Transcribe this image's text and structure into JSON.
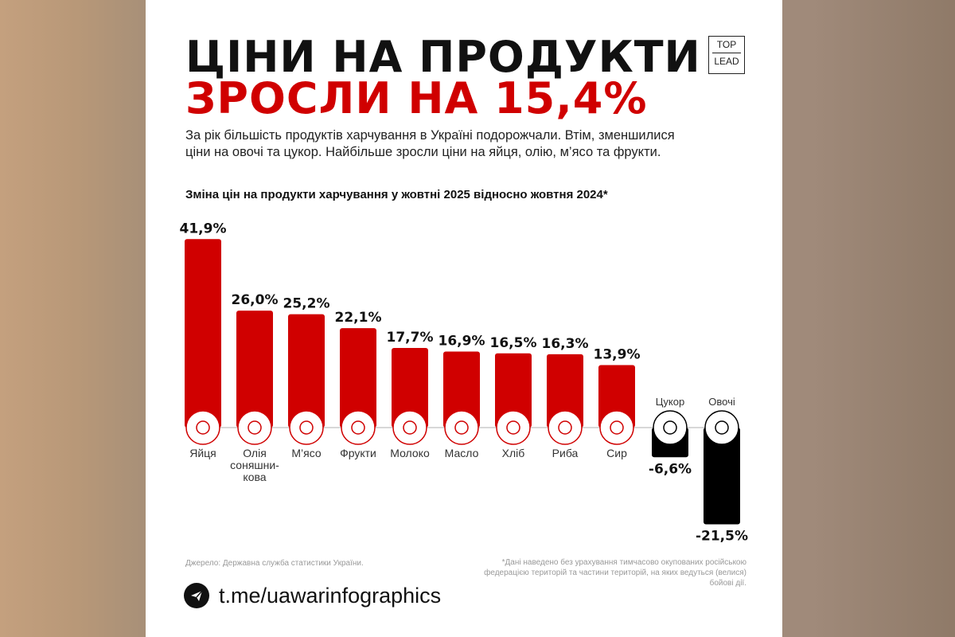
{
  "title_line1": "ЦІНИ НА ПРОДУКТИ",
  "title_line2": "ЗРОСЛИ НА 15,4%",
  "logo": {
    "line1": "TOP",
    "line2": "LEAD"
  },
  "subtitle": "За рік більшість продуктів харчування в Україні подорожчали. Втім, зменшилися ціни на овочі та цукор. Найбільше зросли ціни на яйця, олію, м’ясо та фрукти.",
  "colors": {
    "positive": "#d00000",
    "negative": "#000000"
  },
  "chart_data": {
    "type": "bar",
    "title": "Зміна цін на продукти харчування у жовтні 2025 відносно жовтня 2024*",
    "categories": [
      "Яйця",
      "Олія соняшни-кова",
      "М’ясо",
      "Фрукти",
      "Молоко",
      "Масло",
      "Хліб",
      "Риба",
      "Сир",
      "Цукор",
      "Овочі"
    ],
    "icons": [
      "egg-icon",
      "oil-bottle-icon",
      "chicken-leg-icon",
      "apple-icon",
      "milk-carton-icon",
      "butter-icon",
      "bread-icon",
      "fish-icon",
      "cheese-icon",
      "sugar-cubes-icon",
      "vegetables-icon"
    ],
    "values": [
      41.9,
      26.0,
      25.2,
      22.1,
      17.7,
      16.9,
      16.5,
      16.3,
      13.9,
      -6.6,
      -21.5
    ],
    "labels": [
      "41,9%",
      "26,0%",
      "25,2%",
      "22,1%",
      "17,7%",
      "16,9%",
      "16,5%",
      "16,3%",
      "13,9%",
      "-6,6%",
      "-21,5%"
    ],
    "unit": "%"
  },
  "footer": {
    "source": "Джерело: Державна служба статистики України.",
    "note": "*Дані наведено без урахування тимчасово окупованих російською федерацією територій та частини територій, на яких ведуться (велися) бойові дії.",
    "link": "t.me/uawarinfographics"
  }
}
